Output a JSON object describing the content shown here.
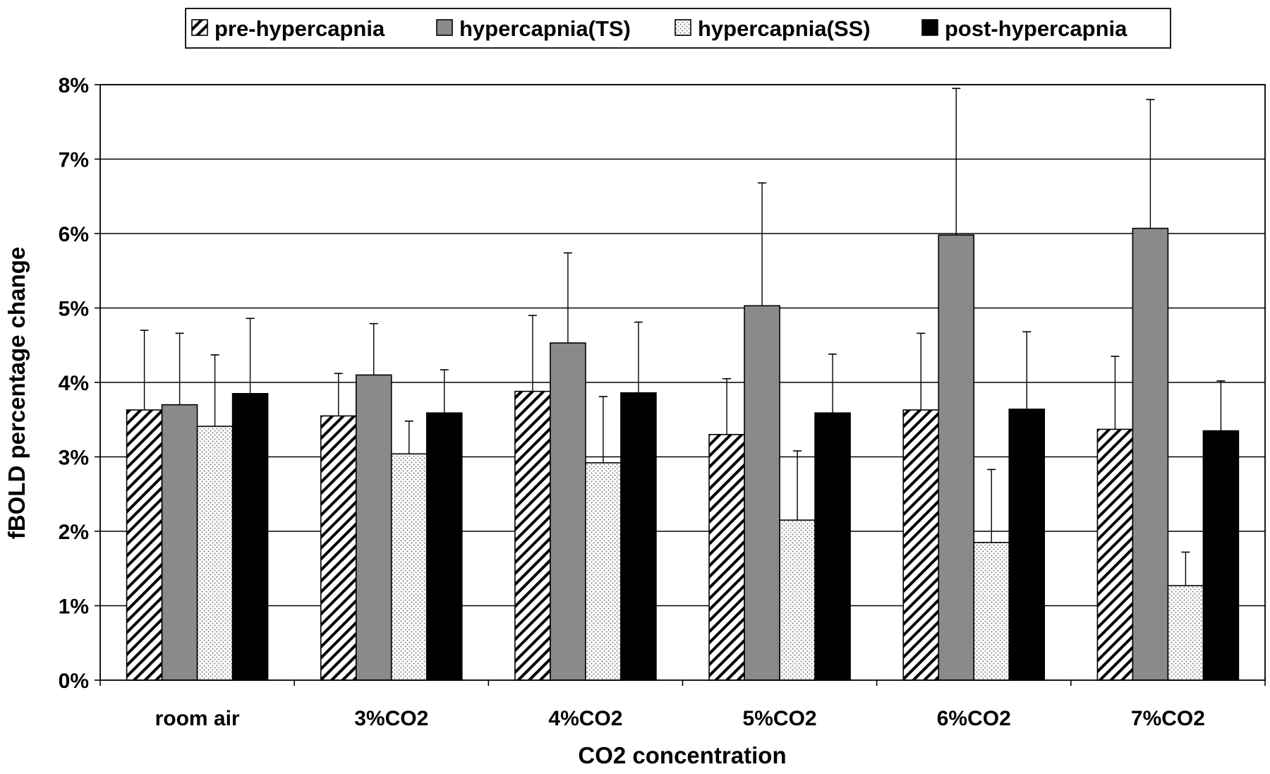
{
  "chart_data": {
    "type": "bar",
    "title": "",
    "xlabel": "CO2 concentration",
    "ylabel": "fBOLD percentage change",
    "categories": [
      "room air",
      "3%CO2",
      "4%CO2",
      "5%CO2",
      "6%CO2",
      "7%CO2"
    ],
    "ylim": [
      0,
      8
    ],
    "yticks": [
      0,
      1,
      2,
      3,
      4,
      5,
      6,
      7,
      8
    ],
    "ytick_labels": [
      "0%",
      "1%",
      "2%",
      "3%",
      "4%",
      "5%",
      "6%",
      "7%",
      "8%"
    ],
    "grid": true,
    "legend_position": "top",
    "error_bars": true,
    "series": [
      {
        "name": "pre-hypercapnia",
        "pattern": "diagonal-hatch",
        "values": [
          3.63,
          3.55,
          3.88,
          3.3,
          3.63,
          3.37
        ],
        "errors": [
          1.07,
          0.57,
          1.02,
          0.75,
          1.03,
          0.98
        ]
      },
      {
        "name": "hypercapnia(TS)",
        "pattern": "solid-gray",
        "values": [
          3.7,
          4.1,
          4.53,
          5.03,
          5.98,
          6.07
        ],
        "errors": [
          0.96,
          0.69,
          1.21,
          1.65,
          1.97,
          1.73
        ]
      },
      {
        "name": "hypercapnia(SS)",
        "pattern": "dotted",
        "values": [
          3.41,
          3.04,
          2.92,
          2.15,
          1.85,
          1.27
        ],
        "errors": [
          0.96,
          0.44,
          0.89,
          0.93,
          0.98,
          0.45
        ]
      },
      {
        "name": "post-hypercapnia",
        "pattern": "solid-black",
        "values": [
          3.85,
          3.59,
          3.86,
          3.59,
          3.64,
          3.35
        ],
        "errors": [
          1.01,
          0.58,
          0.95,
          0.79,
          1.04,
          0.67
        ]
      }
    ]
  },
  "colors": {
    "gray": "#8a8a8a",
    "black": "#000000",
    "dots": "#7a7a7a",
    "background": "#ffffff"
  }
}
